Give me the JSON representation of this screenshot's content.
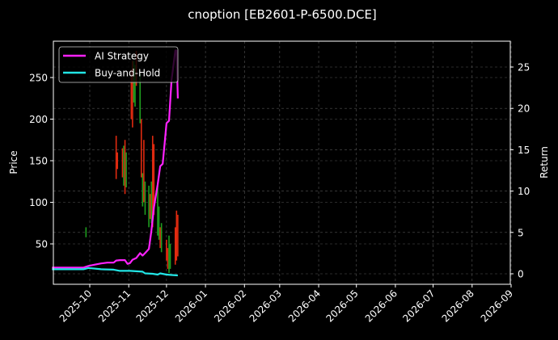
{
  "chart_data": {
    "type": "line",
    "title": "cnoption [EB2601-P-6500.DCE]",
    "xlabel": "",
    "ylabel": "Price",
    "y2label": "Return",
    "grid": true,
    "legend_position": "upper left",
    "background": "#000000",
    "x_ticks": [
      "2025-10",
      "2025-11",
      "2025-12",
      "2026-01",
      "2026-02",
      "2026-03",
      "2026-04",
      "2026-05",
      "2026-06",
      "2026-07",
      "2026-08",
      "2026-09"
    ],
    "y_ticks": [
      50,
      100,
      150,
      200,
      250
    ],
    "y2_ticks": [
      0,
      5,
      10,
      15,
      20,
      25
    ],
    "ylim": [
      4,
      295
    ],
    "y2lim": [
      -1.0,
      28.0
    ],
    "series": [
      {
        "name": "AI Strategy",
        "axis": "right",
        "color": "#ff22ff",
        "x": [
          "2025-09-01",
          "2025-09-26",
          "2025-09-30",
          "2025-10-05",
          "2025-10-10",
          "2025-10-15",
          "2025-10-20",
          "2025-10-22",
          "2025-10-25",
          "2025-10-29",
          "2025-10-31",
          "2025-11-02",
          "2025-11-04",
          "2025-11-07",
          "2025-11-10",
          "2025-11-12",
          "2025-11-14",
          "2025-11-17",
          "2025-11-19",
          "2025-11-21",
          "2025-11-24",
          "2025-11-26",
          "2025-11-28",
          "2025-12-01",
          "2025-12-03",
          "2025-12-05",
          "2025-12-08",
          "2025-12-09",
          "2025-12-10"
        ],
        "values": [
          0.75,
          0.75,
          0.95,
          1.1,
          1.25,
          1.35,
          1.35,
          1.6,
          1.65,
          1.65,
          1.2,
          1.3,
          1.7,
          1.9,
          2.5,
          2.2,
          2.5,
          3.0,
          5.2,
          8.0,
          10.8,
          13.0,
          13.3,
          18.2,
          18.5,
          23.4,
          27.0,
          27.0,
          21.2
        ]
      },
      {
        "name": "Buy-and-Hold",
        "axis": "right",
        "color": "#22e5e5",
        "x": [
          "2025-09-01",
          "2025-09-26",
          "2025-09-30",
          "2025-10-10",
          "2025-10-20",
          "2025-10-25",
          "2025-11-02",
          "2025-11-07",
          "2025-11-12",
          "2025-11-14",
          "2025-11-20",
          "2025-11-24",
          "2025-11-26",
          "2025-12-01",
          "2025-12-05",
          "2025-12-10"
        ],
        "values": [
          0.55,
          0.55,
          0.7,
          0.55,
          0.5,
          0.35,
          0.35,
          0.3,
          0.25,
          0.05,
          0.0,
          -0.1,
          0.05,
          -0.1,
          -0.15,
          -0.2
        ]
      }
    ],
    "candles": {
      "axis": "left",
      "up_color": "#1f9e1f",
      "down_color": "#e02a10",
      "bars": [
        {
          "x": "2025-09-28",
          "low": 58,
          "high": 70,
          "dir": "up"
        },
        {
          "x": "2025-10-22",
          "low": 128,
          "high": 180,
          "dir": "down"
        },
        {
          "x": "2025-10-23",
          "low": 140,
          "high": 160,
          "dir": "down"
        },
        {
          "x": "2025-10-27",
          "low": 130,
          "high": 165,
          "dir": "down"
        },
        {
          "x": "2025-10-28",
          "low": 120,
          "high": 168,
          "dir": "up"
        },
        {
          "x": "2025-10-29",
          "low": 110,
          "high": 175,
          "dir": "down"
        },
        {
          "x": "2025-10-30",
          "low": 118,
          "high": 160,
          "dir": "up"
        },
        {
          "x": "2025-11-03",
          "low": 200,
          "high": 260,
          "dir": "down"
        },
        {
          "x": "2025-11-04",
          "low": 190,
          "high": 270,
          "dir": "down"
        },
        {
          "x": "2025-11-05",
          "low": 220,
          "high": 270,
          "dir": "up"
        },
        {
          "x": "2025-11-06",
          "low": 215,
          "high": 265,
          "dir": "up"
        },
        {
          "x": "2025-11-07",
          "low": 240,
          "high": 282,
          "dir": "down"
        },
        {
          "x": "2025-11-10",
          "low": 195,
          "high": 255,
          "dir": "up"
        },
        {
          "x": "2025-11-11",
          "low": 130,
          "high": 200,
          "dir": "down"
        },
        {
          "x": "2025-11-12",
          "low": 95,
          "high": 135,
          "dir": "up"
        },
        {
          "x": "2025-11-13",
          "low": 100,
          "high": 175,
          "dir": "down"
        },
        {
          "x": "2025-11-14",
          "low": 85,
          "high": 125,
          "dir": "up"
        },
        {
          "x": "2025-11-17",
          "low": 70,
          "high": 120,
          "dir": "up"
        },
        {
          "x": "2025-11-18",
          "low": 80,
          "high": 110,
          "dir": "down"
        },
        {
          "x": "2025-11-19",
          "low": 75,
          "high": 125,
          "dir": "up"
        },
        {
          "x": "2025-11-20",
          "low": 70,
          "high": 180,
          "dir": "down"
        },
        {
          "x": "2025-11-21",
          "low": 85,
          "high": 170,
          "dir": "down"
        },
        {
          "x": "2025-11-24",
          "low": 60,
          "high": 120,
          "dir": "up"
        },
        {
          "x": "2025-11-25",
          "low": 55,
          "high": 95,
          "dir": "up"
        },
        {
          "x": "2025-11-26",
          "low": 45,
          "high": 70,
          "dir": "down"
        },
        {
          "x": "2025-11-27",
          "low": 40,
          "high": 75,
          "dir": "up"
        },
        {
          "x": "2025-12-01",
          "low": 30,
          "high": 55,
          "dir": "down"
        },
        {
          "x": "2025-12-02",
          "low": 20,
          "high": 45,
          "dir": "down"
        },
        {
          "x": "2025-12-03",
          "low": 15,
          "high": 60,
          "dir": "up"
        },
        {
          "x": "2025-12-04",
          "low": 20,
          "high": 50,
          "dir": "up"
        },
        {
          "x": "2025-12-08",
          "low": 25,
          "high": 70,
          "dir": "down"
        },
        {
          "x": "2025-12-09",
          "low": 30,
          "high": 90,
          "dir": "down"
        },
        {
          "x": "2025-12-10",
          "low": 35,
          "high": 85,
          "dir": "down"
        }
      ]
    }
  },
  "legend": {
    "items": [
      {
        "label": "AI Strategy",
        "color": "#ff22ff"
      },
      {
        "label": "Buy-and-Hold",
        "color": "#22e5e5"
      }
    ]
  }
}
